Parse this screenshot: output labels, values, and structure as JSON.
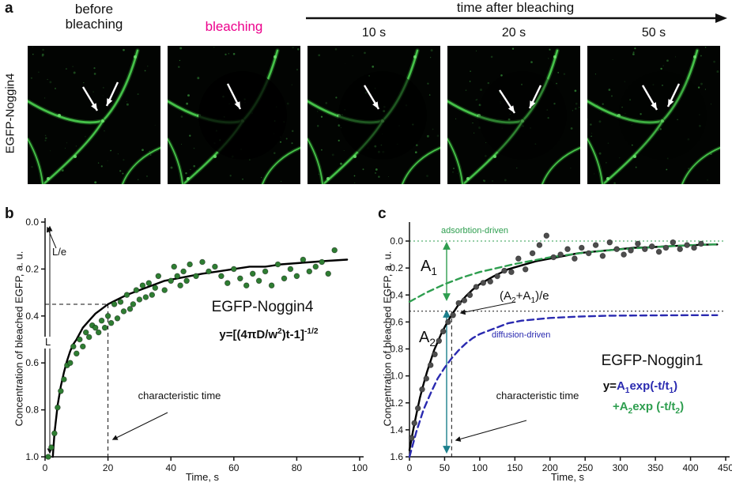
{
  "figure": {
    "panel_labels": {
      "a": "a",
      "b": "b",
      "c": "c"
    }
  },
  "panel_a": {
    "row_label": "EGFP-Noggin4",
    "col1_header": "before bleaching",
    "col2_header": "bleaching",
    "timeline_header": "time after bleaching",
    "timepoints": [
      "10 s",
      "20 s",
      "50 s"
    ],
    "accent_color": "#ec008c",
    "fluorescence_color": "#49c84d"
  },
  "chart_data": [
    {
      "id": "chart-b",
      "type": "scatter",
      "title": "EGFP-Noggin4",
      "xlabel": "Time, s",
      "ylabel": "Concentration of bleached EGFP, a. u.",
      "xlim": [
        0,
        100
      ],
      "ylim_inverted": [
        0.0,
        1.0
      ],
      "xticks": [
        0,
        20,
        40,
        60,
        80,
        100
      ],
      "yticks": [
        0.0,
        0.2,
        0.4,
        0.6,
        0.8,
        1.0
      ],
      "grid": false,
      "equation": {
        "lead": "y=[(4πD/w",
        "sup1": "2",
        "mid": ")t-1]",
        "sup2": "-1/2"
      },
      "annotations": {
        "l_over_e": "L/e",
        "l": "L",
        "characteristic_time": "characteristic time"
      },
      "guides": {
        "h_value": 0.35,
        "v_time": 20
      },
      "colors": {
        "points": "#2e7d32",
        "fit": "#000000"
      },
      "points": [
        [
          1,
          1.0
        ],
        [
          2,
          0.96
        ],
        [
          3,
          0.9
        ],
        [
          4,
          0.79
        ],
        [
          5,
          0.72
        ],
        [
          6,
          0.67
        ],
        [
          7,
          0.61
        ],
        [
          8,
          0.6
        ],
        [
          9,
          0.53
        ],
        [
          10,
          0.56
        ],
        [
          11,
          0.5
        ],
        [
          12,
          0.53
        ],
        [
          13,
          0.47
        ],
        [
          14,
          0.49
        ],
        [
          15,
          0.44
        ],
        [
          16,
          0.45
        ],
        [
          17,
          0.47
        ],
        [
          18,
          0.42
        ],
        [
          19,
          0.45
        ],
        [
          20,
          0.4
        ],
        [
          21,
          0.43
        ],
        [
          22,
          0.35
        ],
        [
          23,
          0.41
        ],
        [
          24,
          0.34
        ],
        [
          25,
          0.38
        ],
        [
          26,
          0.31
        ],
        [
          27,
          0.37
        ],
        [
          28,
          0.35
        ],
        [
          29,
          0.29
        ],
        [
          30,
          0.33
        ],
        [
          31,
          0.27
        ],
        [
          32,
          0.32
        ],
        [
          33,
          0.26
        ],
        [
          34,
          0.31
        ],
        [
          35,
          0.28
        ],
        [
          36,
          0.23
        ],
        [
          38,
          0.29
        ],
        [
          40,
          0.25
        ],
        [
          41,
          0.19
        ],
        [
          42,
          0.23
        ],
        [
          43,
          0.27
        ],
        [
          44,
          0.21
        ],
        [
          45,
          0.25
        ],
        [
          46,
          0.18
        ],
        [
          48,
          0.23
        ],
        [
          50,
          0.17
        ],
        [
          52,
          0.21
        ],
        [
          54,
          0.19
        ],
        [
          56,
          0.23
        ],
        [
          58,
          0.26
        ],
        [
          60,
          0.2
        ],
        [
          62,
          0.24
        ],
        [
          64,
          0.27
        ],
        [
          66,
          0.22
        ],
        [
          68,
          0.25
        ],
        [
          70,
          0.21
        ],
        [
          72,
          0.27
        ],
        [
          74,
          0.18
        ],
        [
          76,
          0.24
        ],
        [
          78,
          0.2
        ],
        [
          80,
          0.23
        ],
        [
          82,
          0.16
        ],
        [
          84,
          0.21
        ],
        [
          86,
          0.19
        ],
        [
          88,
          0.17
        ],
        [
          90,
          0.22
        ],
        [
          92,
          0.12
        ]
      ],
      "curves": [
        {
          "name": "fit",
          "color": "#000000",
          "dash": "",
          "points": [
            [
              2.45,
              1.0
            ],
            [
              3,
              0.9
            ],
            [
              3.5,
              0.84
            ],
            [
              4,
              0.78
            ],
            [
              4.5,
              0.74
            ],
            [
              5,
              0.7
            ],
            [
              6,
              0.64
            ],
            [
              7,
              0.59
            ],
            [
              8,
              0.55
            ],
            [
              9,
              0.52
            ],
            [
              10,
              0.5
            ],
            [
              12,
              0.45
            ],
            [
              14,
              0.42
            ],
            [
              16,
              0.39
            ],
            [
              18,
              0.37
            ],
            [
              20,
              0.35
            ],
            [
              23,
              0.33
            ],
            [
              26,
              0.31
            ],
            [
              30,
              0.29
            ],
            [
              34,
              0.27
            ],
            [
              38,
              0.25
            ],
            [
              42,
              0.24
            ],
            [
              46,
              0.23
            ],
            [
              50,
              0.22
            ],
            [
              55,
              0.21
            ],
            [
              60,
              0.2
            ],
            [
              65,
              0.19
            ],
            [
              70,
              0.19
            ],
            [
              75,
              0.18
            ],
            [
              80,
              0.175
            ],
            [
              85,
              0.17
            ],
            [
              90,
              0.165
            ],
            [
              96,
              0.16
            ]
          ]
        }
      ]
    },
    {
      "id": "chart-c",
      "type": "scatter",
      "title": "EGFP-Noggin1",
      "xlabel": "Time, s",
      "ylabel": "Concentration of bleached EGFP, a. u.",
      "xlim": [
        0,
        450
      ],
      "ylim_inverted": [
        0.0,
        1.6
      ],
      "xticks": [
        0,
        50,
        100,
        150,
        200,
        250,
        300,
        350,
        400,
        450
      ],
      "yticks": [
        0.0,
        0.2,
        0.4,
        0.6,
        0.8,
        1.0,
        1.2,
        1.4,
        1.6
      ],
      "grid": false,
      "annotations": {
        "adsorption": "adsorbtion-driven",
        "diffusion": "diffusion-driven",
        "a1": {
          "base": "A",
          "sub": "1"
        },
        "a2": {
          "base": "A",
          "sub": "2"
        },
        "amplitude_over_e": {
          "p1": "(A",
          "s1": "2",
          "p2": "+A",
          "s2": "1",
          "p3": ")/e"
        },
        "characteristic_time": "characteristic time"
      },
      "equation_line1": {
        "lead": "y=",
        "term": "A",
        "sub1": "1",
        "body": "exp(-t/t",
        "sub2": "1",
        "close": ")"
      },
      "equation_line2": {
        "plus": "+",
        "term": "A",
        "sub1": "2",
        "body": "exp (-t/t",
        "sub2": "2",
        "close": ")"
      },
      "guides": {
        "zero": 0.0,
        "cross_value": 0.52,
        "cross_time": 60
      },
      "colors": {
        "points": "#4d4d4d",
        "fit": "#000000",
        "adsorption": "#2e9e4f",
        "diffusion": "#2a2ab0"
      },
      "points": [
        [
          3,
          1.46
        ],
        [
          7,
          1.35
        ],
        [
          12,
          1.24
        ],
        [
          18,
          1.1
        ],
        [
          24,
          1.02
        ],
        [
          30,
          0.92
        ],
        [
          36,
          0.84
        ],
        [
          42,
          0.74
        ],
        [
          48,
          0.67
        ],
        [
          55,
          0.6
        ],
        [
          62,
          0.55
        ],
        [
          70,
          0.46
        ],
        [
          78,
          0.44
        ],
        [
          86,
          0.4
        ],
        [
          95,
          0.34
        ],
        [
          105,
          0.31
        ],
        [
          115,
          0.3
        ],
        [
          125,
          0.26
        ],
        [
          135,
          0.22
        ],
        [
          145,
          0.23
        ],
        [
          155,
          0.13
        ],
        [
          165,
          0.21
        ],
        [
          175,
          0.09
        ],
        [
          185,
          0.03
        ],
        [
          195,
          -0.04
        ],
        [
          205,
          0.12
        ],
        [
          215,
          0.1
        ],
        [
          225,
          0.06
        ],
        [
          235,
          0.13
        ],
        [
          245,
          0.05
        ],
        [
          255,
          0.09
        ],
        [
          265,
          0.03
        ],
        [
          275,
          0.11
        ],
        [
          285,
          0.01
        ],
        [
          295,
          0.06
        ],
        [
          305,
          0.1
        ],
        [
          315,
          0.07
        ],
        [
          325,
          0.02
        ],
        [
          335,
          0.06
        ],
        [
          345,
          0.04
        ],
        [
          355,
          0.08
        ],
        [
          365,
          0.05
        ],
        [
          375,
          0.01
        ],
        [
          385,
          0.06
        ],
        [
          395,
          0.03
        ],
        [
          405,
          0.05
        ],
        [
          415,
          0.02
        ]
      ],
      "curves": [
        {
          "name": "fit",
          "color": "#000000",
          "dash": "",
          "points": [
            [
              0,
              1.55
            ],
            [
              5,
              1.41
            ],
            [
              10,
              1.28
            ],
            [
              15,
              1.16
            ],
            [
              20,
              1.06
            ],
            [
              25,
              0.97
            ],
            [
              30,
              0.89
            ],
            [
              35,
              0.81
            ],
            [
              40,
              0.75
            ],
            [
              45,
              0.69
            ],
            [
              50,
              0.64
            ],
            [
              55,
              0.59
            ],
            [
              60,
              0.55
            ],
            [
              70,
              0.47
            ],
            [
              80,
              0.41
            ],
            [
              90,
              0.36
            ],
            [
              100,
              0.32
            ],
            [
              120,
              0.26
            ],
            [
              140,
              0.21
            ],
            [
              160,
              0.18
            ],
            [
              180,
              0.15
            ],
            [
              200,
              0.13
            ],
            [
              220,
              0.11
            ],
            [
              240,
              0.09
            ],
            [
              260,
              0.08
            ],
            [
              280,
              0.07
            ],
            [
              300,
              0.06
            ],
            [
              320,
              0.05
            ],
            [
              340,
              0.047
            ],
            [
              360,
              0.041
            ],
            [
              380,
              0.036
            ],
            [
              400,
              0.031
            ],
            [
              420,
              0.027
            ],
            [
              438,
              0.025
            ]
          ]
        },
        {
          "name": "adsorption-driven",
          "color": "#2e9e4f",
          "dash": "8,5",
          "points": [
            [
              0,
              0.45
            ],
            [
              25,
              0.38
            ],
            [
              50,
              0.32
            ],
            [
              75,
              0.27
            ],
            [
              100,
              0.23
            ],
            [
              150,
              0.17
            ],
            [
              200,
              0.12
            ],
            [
              250,
              0.085
            ],
            [
              300,
              0.061
            ],
            [
              350,
              0.044
            ],
            [
              400,
              0.031
            ],
            [
              438,
              0.024
            ]
          ]
        },
        {
          "name": "diffusion-driven",
          "color": "#2a2ab0",
          "dash": "8,5",
          "points": [
            [
              0,
              1.6
            ],
            [
              10,
              1.41
            ],
            [
              20,
              1.25
            ],
            [
              30,
              1.13
            ],
            [
              40,
              1.02
            ],
            [
              50,
              0.94
            ],
            [
              60,
              0.87
            ],
            [
              70,
              0.81
            ],
            [
              80,
              0.76
            ],
            [
              90,
              0.72
            ],
            [
              100,
              0.69
            ],
            [
              120,
              0.65
            ],
            [
              140,
              0.61
            ],
            [
              160,
              0.59
            ],
            [
              180,
              0.58
            ],
            [
              200,
              0.57
            ],
            [
              240,
              0.56
            ],
            [
              280,
              0.554
            ],
            [
              320,
              0.552
            ],
            [
              360,
              0.551
            ],
            [
              400,
              0.55
            ],
            [
              438,
              0.55
            ]
          ]
        }
      ]
    }
  ]
}
